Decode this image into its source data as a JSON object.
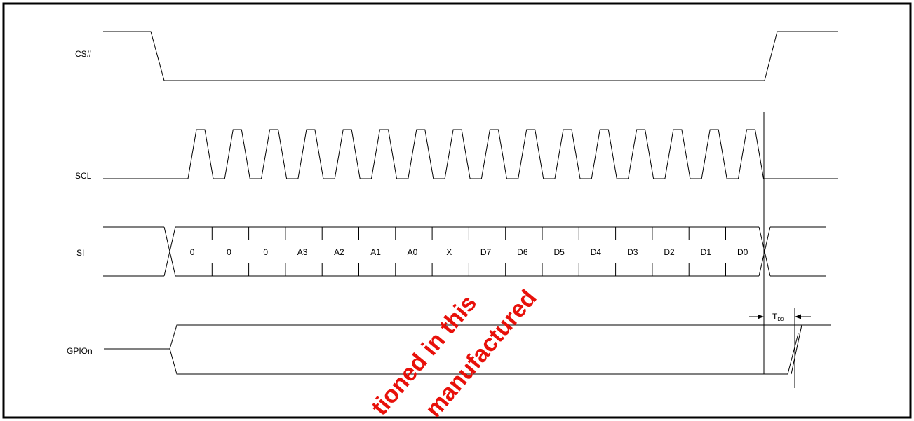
{
  "signals": {
    "cs": "CS#",
    "scl": "SCL",
    "si": "SI",
    "gpio": "GPIOn"
  },
  "si_bits": [
    "0",
    "0",
    "0",
    "A3",
    "A2",
    "A1",
    "A0",
    "X",
    "D7",
    "D6",
    "D5",
    "D4",
    "D3",
    "D2",
    "D1",
    "D0"
  ],
  "timing": {
    "symbol": "T",
    "subscript": "D9"
  },
  "watermark": {
    "line1": "tioned in this",
    "line2": "manufactured"
  },
  "colors": {
    "line": "#000000",
    "watermark": "#e8100a"
  }
}
